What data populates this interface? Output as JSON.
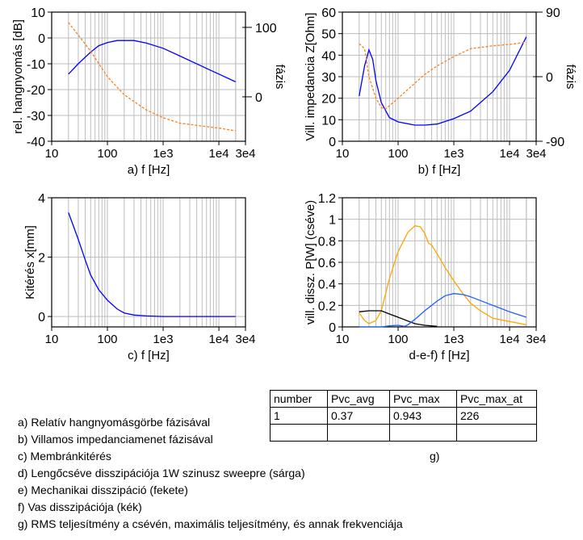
{
  "chart_data": [
    {
      "id": "a",
      "type": "line",
      "xscale": "log",
      "xlim": [
        10,
        30000
      ],
      "ylim": [
        -40,
        10
      ],
      "yticks": [
        10,
        0,
        -10,
        -20,
        -30,
        -40
      ],
      "xticks": [
        10,
        100,
        1000,
        10000,
        30000
      ],
      "xtick_labels": [
        "10",
        "100",
        "1e3",
        "1e4",
        "3e4"
      ],
      "xlabel": "a) f [Hz]",
      "ylabel": "rel. hangnyomás [dB]",
      "y2label": "fázis",
      "y2lim": [
        -64,
        122
      ],
      "y2ticks": [
        100,
        0
      ],
      "series": [
        {
          "name": "SPL",
          "axis": "left",
          "color": "#0000ff",
          "dash": false,
          "x": [
            20,
            30,
            50,
            70,
            100,
            150,
            200,
            300,
            500,
            1000,
            2000,
            5000,
            10000,
            20000
          ],
          "y": [
            -14,
            -10,
            -5.5,
            -3,
            -1.8,
            -1,
            -1,
            -1,
            -2,
            -4,
            -7,
            -11,
            -14,
            -17
          ]
        },
        {
          "name": "phase",
          "axis": "right",
          "color": "#ff7f1a",
          "dash": true,
          "x": [
            20,
            50,
            70,
            100,
            200,
            500,
            1000,
            2000,
            5000,
            10000,
            20000
          ],
          "y": [
            107,
            66,
            48,
            29,
            3,
            -19,
            -30,
            -38,
            -42,
            -45,
            -49
          ]
        }
      ]
    },
    {
      "id": "b",
      "type": "line",
      "xscale": "log",
      "xlim": [
        10,
        30000
      ],
      "ylim": [
        0,
        60
      ],
      "yticks": [
        60,
        50,
        40,
        30,
        20,
        10,
        0
      ],
      "xticks": [
        10,
        100,
        1000,
        10000,
        30000
      ],
      "xtick_labels": [
        "10",
        "100",
        "1e3",
        "1e4",
        "3e4"
      ],
      "xlabel": "b) f [Hz]",
      "ylabel": "Vill. impedancia Z[Ohm]",
      "y2label": "fázis",
      "y2lim": [
        -90,
        90
      ],
      "y2ticks": [
        90,
        0,
        -90
      ],
      "series": [
        {
          "name": "Z",
          "axis": "left",
          "color": "#0000ff",
          "dash": false,
          "x": [
            20,
            25,
            30,
            35,
            40,
            50,
            70,
            100,
            200,
            300,
            500,
            1000,
            2000,
            5000,
            10000,
            20000
          ],
          "y": [
            21,
            35,
            42.5,
            38,
            28,
            18,
            11,
            9,
            7.5,
            7.5,
            8,
            10.5,
            14,
            23,
            33,
            48.5
          ]
        },
        {
          "name": "phase",
          "axis": "right",
          "color": "#ff7f1a",
          "dash": true,
          "x": [
            20,
            25,
            30,
            40,
            50,
            60,
            100,
            200,
            300,
            500,
            1000,
            2000,
            5000,
            10000,
            20000
          ],
          "y": [
            46,
            39,
            0,
            -30,
            -43,
            -45,
            -30,
            -9,
            3,
            15,
            28,
            39,
            43,
            45,
            48
          ]
        }
      ]
    },
    {
      "id": "c",
      "type": "line",
      "xscale": "log",
      "xlim": [
        10,
        30000
      ],
      "ylim": [
        -0.35,
        4
      ],
      "yticks": [
        4,
        2,
        0
      ],
      "xticks": [
        10,
        100,
        1000,
        10000,
        30000
      ],
      "xtick_labels": [
        "10",
        "100",
        "1e3",
        "1e4",
        "3e4"
      ],
      "xlabel": "c) f [Hz]",
      "ylabel": "Kitérés x[mm]",
      "series": [
        {
          "name": "x",
          "axis": "left",
          "color": "#0000ff",
          "dash": false,
          "x": [
            20,
            30,
            40,
            50,
            70,
            100,
            150,
            200,
            300,
            500,
            1000,
            20000
          ],
          "y": [
            3.5,
            2.6,
            1.9,
            1.4,
            0.9,
            0.55,
            0.25,
            0.12,
            0.05,
            0.02,
            0,
            0
          ]
        }
      ]
    },
    {
      "id": "d",
      "type": "line",
      "xscale": "log",
      "xlim": [
        10,
        30000
      ],
      "ylim": [
        0,
        1.2
      ],
      "yticks": [
        1.2,
        1,
        0.8,
        0.6,
        0.4,
        0.2,
        0
      ],
      "xticks": [
        10,
        100,
        1000,
        10000,
        30000
      ],
      "xtick_labels": [
        "10",
        "100",
        "1e3",
        "1e4",
        "3e4"
      ],
      "xlabel": "d-e-f) f [Hz]",
      "ylabel": "vill. dissz. P[W] (cséve)",
      "series": [
        {
          "name": "coil",
          "axis": "left",
          "color": "#ffa500",
          "dash": false,
          "x": [
            20,
            25,
            30,
            40,
            50,
            70,
            100,
            150,
            200,
            250,
            300,
            350,
            400,
            500,
            700,
            1000,
            1500,
            2000,
            3000,
            5000,
            10000,
            20000
          ],
          "y": [
            0.13,
            0.06,
            0.03,
            0.06,
            0.15,
            0.45,
            0.7,
            0.88,
            0.94,
            0.93,
            0.87,
            0.78,
            0.76,
            0.68,
            0.55,
            0.43,
            0.3,
            0.22,
            0.15,
            0.08,
            0.05,
            0.02
          ]
        },
        {
          "name": "mechanical",
          "axis": "left",
          "color": "#000000",
          "dash": false,
          "x": [
            20,
            30,
            50,
            70,
            100,
            200,
            300,
            500
          ],
          "y": [
            0.14,
            0.15,
            0.15,
            0.12,
            0.09,
            0.03,
            0.015,
            0.005
          ]
        },
        {
          "name": "iron",
          "axis": "left",
          "color": "#1a5fff",
          "dash": false,
          "x": [
            20,
            50,
            70,
            100,
            130,
            150,
            200,
            300,
            500,
            700,
            1000,
            1500,
            2000,
            5000,
            10000,
            20000
          ],
          "y": [
            0,
            0,
            0.01,
            0.015,
            0.005,
            0.02,
            0.07,
            0.15,
            0.24,
            0.29,
            0.31,
            0.3,
            0.28,
            0.2,
            0.14,
            0.09
          ]
        }
      ]
    }
  ],
  "legend": [
    "a) Relatív hangnyomásgörbe fázisával",
    "b) Villamos impedanciamenet fázisával",
    "c) Membránkitérés",
    "d) Lengőcséve disszipációja 1W szinusz sweepre (sárga)",
    "e) Mechanikai disszipáció (fekete)",
    "f)  Vas disszipációja (kék)",
    "g) RMS teljesítmény a csévén, maximális teljesítmény, és annak frekvenciája"
  ],
  "table": {
    "headers": [
      "number",
      "Pvc_avg",
      "Pvc_max",
      "Pvc_max_at"
    ],
    "rows": [
      [
        "1",
        "0.37",
        "0.943",
        "226"
      ],
      [
        "",
        "",
        "",
        ""
      ]
    ],
    "caption": "g)"
  }
}
